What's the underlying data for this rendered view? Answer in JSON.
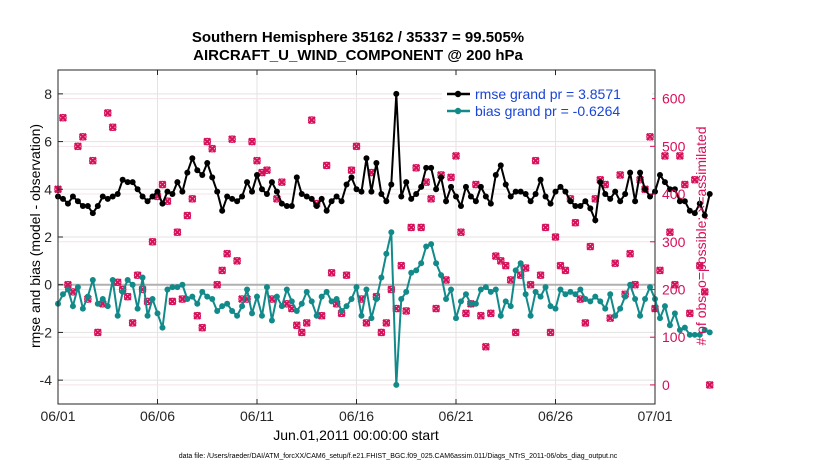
{
  "chart_data": {
    "type": "line",
    "title": [
      "Southern Hemisphere 35162 / 35337 = 99.505%",
      "AIRCRAFT_U_WIND_COMPONENT @ 200 hPa"
    ],
    "xlabel": "Jun.01,2011 00:00:00 start",
    "ylabel": "rmse and bias (model - observation)",
    "ylabel_right": "# of obs: o=possible; ×=assimilated",
    "xlim": [
      0,
      30
    ],
    "ylim": [
      -5,
      9
    ],
    "ylim_right": [
      -40,
      660
    ],
    "xticks": [
      0,
      5,
      10,
      15,
      20,
      25,
      30
    ],
    "xtick_labels": [
      "06/01",
      "06/06",
      "06/11",
      "06/16",
      "06/21",
      "06/26",
      "07/01"
    ],
    "yticks": [
      -4,
      -2,
      0,
      2,
      4,
      6,
      8
    ],
    "yticks_right": [
      0,
      100,
      200,
      300,
      400,
      500,
      600
    ],
    "grid": true,
    "legend_position": "top-right",
    "colors": {
      "rmse": "#000000",
      "bias": "#138a8a",
      "obs": "#d6105a",
      "zero_line": "#b0b0b0",
      "legend_text": "#1a44d6"
    },
    "series": [
      {
        "name": "rmse",
        "legend": "rmse grand pr = 3.8571",
        "x_step": 0.25,
        "values": [
          3.7,
          3.6,
          3.4,
          3.7,
          3.5,
          3.3,
          3.3,
          3.0,
          3.3,
          3.7,
          3.6,
          3.7,
          3.8,
          4.4,
          4.3,
          4.3,
          4.0,
          3.7,
          3.5,
          3.7,
          3.9,
          3.4,
          3.9,
          3.8,
          4.3,
          3.9,
          4.7,
          5.3,
          4.8,
          4.6,
          5.1,
          4.5,
          3.9,
          3.1,
          3.7,
          3.6,
          3.5,
          3.7,
          4.3,
          3.9,
          4.6,
          4.0,
          3.8,
          4.3,
          3.9,
          3.4,
          3.3,
          3.3,
          4.5,
          3.8,
          3.7,
          3.6,
          3.3,
          3.6,
          3.1,
          3.5,
          3.7,
          3.5,
          4.2,
          4.5,
          4.0,
          3.9,
          5.3,
          3.9,
          5.1,
          3.8,
          3.5,
          4.2,
          8.0,
          3.7,
          4.3,
          3.6,
          3.8,
          4.1,
          4.9,
          4.9,
          4.0,
          4.5,
          3.5,
          4.1,
          3.7,
          3.3,
          4.1,
          3.7,
          3.5,
          4.1,
          3.7,
          3.4,
          4.6,
          5.0,
          4.2,
          3.7,
          3.9,
          3.9,
          3.8,
          3.5,
          3.8,
          4.4,
          3.7,
          3.4,
          3.9,
          4.1,
          3.9,
          3.5,
          3.3,
          3.3,
          3.5,
          3.2,
          2.7,
          4.3,
          3.8,
          3.6,
          3.9,
          3.5,
          3.8,
          4.7,
          3.5,
          4.7,
          4.0,
          3.7,
          3.9,
          4.6,
          4.3,
          4.0,
          4.0,
          3.5,
          3.5,
          3.1,
          3.0,
          3.4,
          2.9,
          3.8
        ]
      },
      {
        "name": "bias",
        "legend": "bias grand pr = -0.6264",
        "x_step": 0.25,
        "values": [
          -0.8,
          -0.4,
          -0.2,
          -0.9,
          -0.1,
          -1.0,
          -0.5,
          0.2,
          -0.8,
          -0.6,
          -0.9,
          0.2,
          -1.3,
          -0.3,
          0.2,
          0.0,
          -1.0,
          0.3,
          -1.3,
          -0.6,
          -1.2,
          -1.8,
          -0.2,
          -0.1,
          -0.1,
          0.0,
          -0.6,
          -0.5,
          -0.8,
          -0.3,
          -0.5,
          -0.6,
          -1.1,
          -0.9,
          -0.8,
          -1.1,
          -1.3,
          -0.9,
          -0.2,
          -1.2,
          -0.5,
          -1.3,
          -0.1,
          -1.5,
          -0.5,
          -0.9,
          -0.2,
          -0.7,
          -1.1,
          -0.8,
          -0.3,
          -0.7,
          -1.3,
          -0.5,
          -0.3,
          -0.7,
          -0.6,
          -1.1,
          -0.9,
          -0.6,
          -0.1,
          -1.3,
          -0.2,
          -1.4,
          -0.6,
          0.3,
          1.3,
          2.2,
          -4.2,
          -0.6,
          -0.3,
          0.5,
          0.6,
          0.9,
          1.6,
          1.7,
          0.9,
          0.4,
          -0.6,
          -0.2,
          -1.4,
          -0.7,
          -0.4,
          -0.8,
          -0.8,
          -0.2,
          -0.1,
          -0.3,
          -0.2,
          -1.3,
          -0.7,
          -0.9,
          0.6,
          0.9,
          -0.4,
          -1.3,
          -0.3,
          -0.5,
          -0.1,
          -0.9,
          -1.0,
          -0.2,
          -0.4,
          -0.3,
          -0.4,
          -0.2,
          -0.6,
          -0.7,
          -0.5,
          -0.7,
          -1.0,
          -0.4,
          -1.3,
          -1.0,
          -0.5,
          0.0,
          -0.6,
          -1.3,
          -0.6,
          -0.1,
          -0.6,
          -1.4,
          -0.9,
          -1.7,
          -1.2,
          -1.9,
          -1.8,
          -2.1,
          -2.1,
          -2.1,
          -1.9,
          -2.0
        ]
      }
    ],
    "obs": {
      "x_step": 0.25,
      "assimilated": [
        410,
        560,
        210,
        195,
        500,
        520,
        180,
        470,
        110,
        170,
        570,
        540,
        215,
        200,
        185,
        130,
        230,
        200,
        175,
        300,
        395,
        420,
        385,
        175,
        320,
        180,
        355,
        390,
        145,
        120,
        510,
        495,
        210,
        240,
        275,
        515,
        260,
        180,
        180,
        510,
        470,
        445,
        450,
        180,
        390,
        425,
        170,
        160,
        125,
        110,
        130,
        555,
        380,
        145,
        460,
        235,
        170,
        150,
        230,
        450,
        500,
        180,
        130,
        445,
        185,
        110,
        130,
        200,
        160,
        250,
        155,
        330,
        455,
        330,
        425,
        390,
        160,
        440,
        220,
        435,
        480,
        320,
        150,
        170,
        420,
        145,
        80,
        150,
        270,
        260,
        250,
        220,
        110,
        230,
        245,
        210,
        470,
        230,
        330,
        110,
        310,
        250,
        240,
        390,
        340,
        180,
        130,
        290,
        390,
        430,
        420,
        140,
        255,
        440,
        190,
        275,
        210,
        430,
        410,
        520,
        160,
        240,
        480,
        320,
        210,
        480,
        420,
        150,
        430,
        250,
        195,
        0
      ],
      "possible": [
        410,
        560,
        210,
        195,
        500,
        520,
        180,
        470,
        110,
        170,
        570,
        540,
        215,
        200,
        185,
        130,
        230,
        200,
        175,
        300,
        395,
        420,
        385,
        175,
        320,
        180,
        355,
        390,
        145,
        120,
        510,
        495,
        210,
        240,
        275,
        515,
        260,
        180,
        180,
        510,
        470,
        445,
        450,
        180,
        390,
        425,
        170,
        160,
        125,
        110,
        130,
        555,
        380,
        145,
        460,
        235,
        170,
        150,
        230,
        450,
        500,
        180,
        130,
        445,
        185,
        110,
        130,
        200,
        160,
        250,
        155,
        330,
        455,
        330,
        425,
        390,
        160,
        440,
        220,
        435,
        480,
        320,
        150,
        170,
        420,
        145,
        80,
        150,
        270,
        260,
        250,
        220,
        110,
        230,
        245,
        210,
        470,
        230,
        330,
        110,
        310,
        250,
        240,
        390,
        340,
        180,
        130,
        290,
        390,
        430,
        420,
        140,
        255,
        440,
        190,
        275,
        210,
        430,
        410,
        520,
        160,
        240,
        480,
        320,
        210,
        480,
        420,
        150,
        430,
        250,
        195,
        0
      ]
    }
  },
  "footer": "data file: /Users/raeder/DAI/ATM_forcXX/CAM6_setup/f.e21.FHIST_BGC.f09_025.CAM6assim.011/Diags_NTrS_2011-06/obs_diag_output.nc"
}
